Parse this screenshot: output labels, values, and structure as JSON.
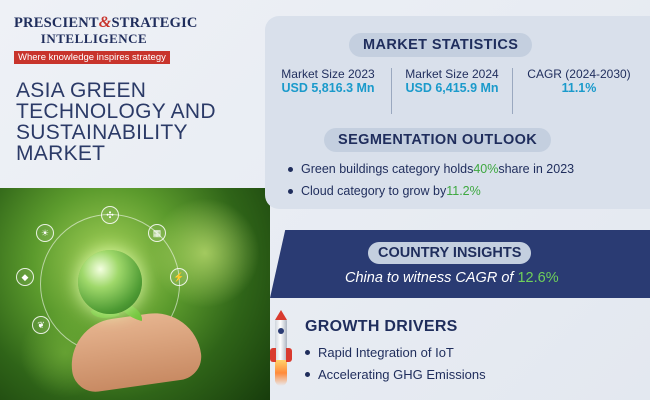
{
  "brand": {
    "name_part1": "PRESCIENT",
    "ampersand": "&",
    "name_part2": "STRATEGIC",
    "name_line2": "INTELLIGENCE",
    "tagline": "Where knowledge inspires strategy"
  },
  "title": "ASIA GREEN TECHNOLOGY AND SUSTAINABILITY MARKET",
  "market_statistics": {
    "heading": "MARKET STATISTICS",
    "items": [
      {
        "label": "Market Size 2023",
        "value": "USD 5,816.3 Mn"
      },
      {
        "label": "Market Size 2024",
        "value": "USD 6,415.9 Mn"
      },
      {
        "label": "CAGR (2024-2030)",
        "value": "11.1%"
      }
    ]
  },
  "segmentation_outlook": {
    "heading": "SEGMENTATION OUTLOOK",
    "items": [
      {
        "before": "Green buildings category holds ",
        "highlight": "40%",
        "after": " share in 2023"
      },
      {
        "before": "Cloud category to grow by ",
        "highlight": "11.2%",
        "after": ""
      }
    ]
  },
  "country_insights": {
    "heading": "COUNTRY INSIGHTS",
    "text_before": "China to witness CAGR of ",
    "highlight": "12.6%"
  },
  "growth_drivers": {
    "heading": "GROWTH DRIVERS",
    "items": [
      "Rapid Integration of IoT",
      "Accelerating GHG Emissions"
    ]
  },
  "colors": {
    "navy": "#1f2d5c",
    "brand_red": "#c8342c",
    "accent_blue": "#1a9acb",
    "accent_green": "#3ea840",
    "band_navy": "#2a3b73"
  },
  "icons": [
    "rocket-icon",
    "globe-icon",
    "eco-icon"
  ]
}
